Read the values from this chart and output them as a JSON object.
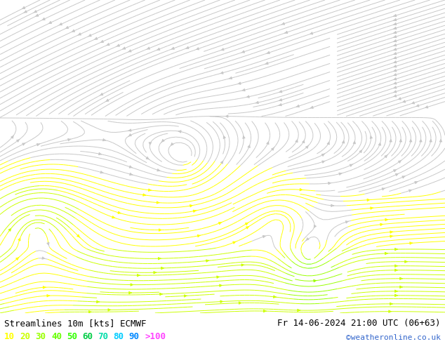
{
  "title_left": "Streamlines 10m [kts] ECMWF",
  "title_right": "Fr 14-06-2024 21:00 UTC (06+63)",
  "credit": "©weatheronline.co.uk",
  "legend_values": [
    "10",
    "20",
    "30",
    "40",
    "50",
    "60",
    "70",
    "80",
    "90",
    ">100"
  ],
  "legend_colors": [
    "#ffff00",
    "#ccff00",
    "#99ff00",
    "#66ff00",
    "#33ff00",
    "#00cc44",
    "#00ddaa",
    "#00ccff",
    "#0088ff",
    "#ff44ff"
  ],
  "background_color": "#d8d8d8",
  "land_color": "#ccffcc",
  "sea_color": "#d8d8d8",
  "coast_color": "#888888",
  "figsize": [
    6.34,
    4.9
  ],
  "dpi": 100,
  "extent": [
    80,
    200,
    -62,
    22
  ],
  "text_color": "#000000",
  "credit_color": "#3366cc",
  "font_size_title": 9,
  "font_size_legend": 9,
  "font_size_credit": 8
}
